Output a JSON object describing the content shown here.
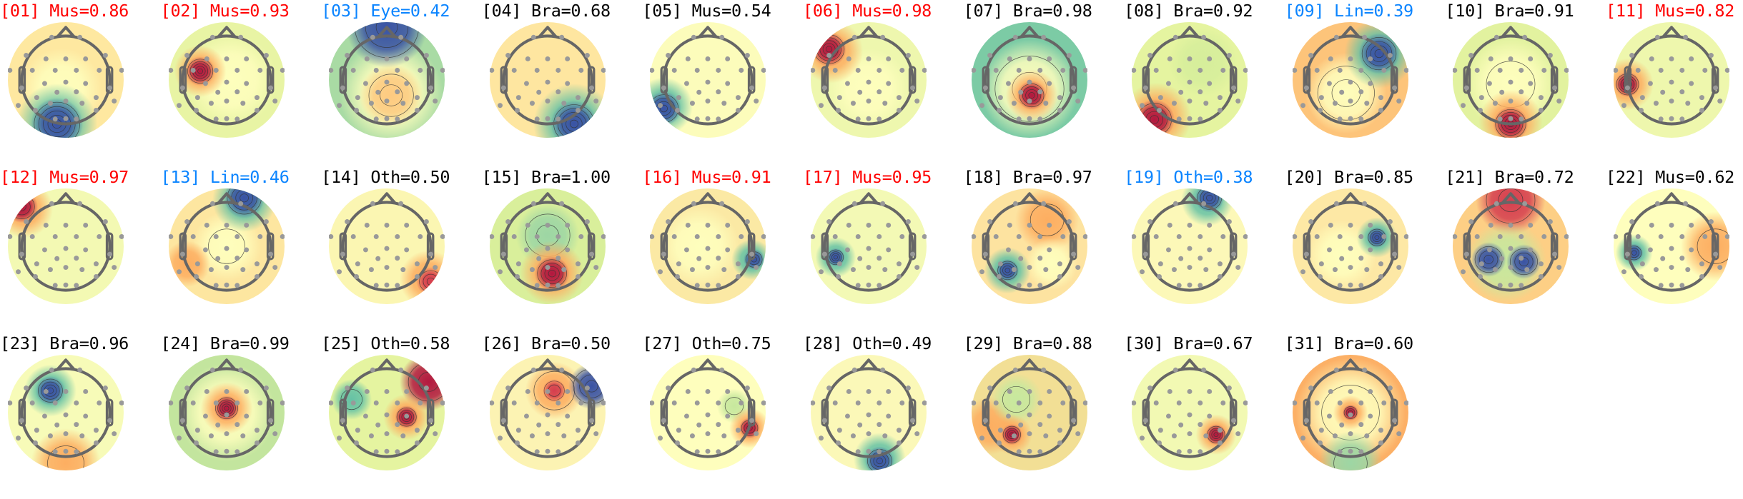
{
  "colormap": {
    "low": "#3a53a4",
    "mid": "#fefebd",
    "high": "#9e0142"
  },
  "class_colors": {
    "red": "#ff0000",
    "blue": "#0a84ff",
    "black": "#000000"
  },
  "components": [
    {
      "title": "[01] Mus=0.86",
      "color": "#ff0000"
    },
    {
      "title": "[02] Mus=0.93",
      "color": "#ff0000"
    },
    {
      "title": "[03] Eye=0.42",
      "color": "#0a84ff"
    },
    {
      "title": "[04] Bra=0.68",
      "color": "#000000"
    },
    {
      "title": "[05] Mus=0.54",
      "color": "#000000"
    },
    {
      "title": "[06] Mus=0.98",
      "color": "#ff0000"
    },
    {
      "title": "[07] Bra=0.98",
      "color": "#000000"
    },
    {
      "title": "[08] Bra=0.92",
      "color": "#000000"
    },
    {
      "title": "[09] Lin=0.39",
      "color": "#0a84ff"
    },
    {
      "title": "[10] Bra=0.91",
      "color": "#000000"
    },
    {
      "title": "[11] Mus=0.82",
      "color": "#ff0000"
    },
    {
      "title": "[12] Mus=0.97",
      "color": "#ff0000"
    },
    {
      "title": "[13] Lin=0.46",
      "color": "#0a84ff"
    },
    {
      "title": "[14] Oth=0.50",
      "color": "#000000"
    },
    {
      "title": "[15] Bra=1.00",
      "color": "#000000"
    },
    {
      "title": "[16] Mus=0.91",
      "color": "#ff0000"
    },
    {
      "title": "[17] Mus=0.95",
      "color": "#ff0000"
    },
    {
      "title": "[18] Bra=0.97",
      "color": "#000000"
    },
    {
      "title": "[19] Oth=0.38",
      "color": "#0a84ff"
    },
    {
      "title": "[20] Bra=0.85",
      "color": "#000000"
    },
    {
      "title": "[21] Bra=0.72",
      "color": "#000000"
    },
    {
      "title": "[22] Mus=0.62",
      "color": "#000000"
    },
    {
      "title": "[23] Bra=0.96",
      "color": "#000000"
    },
    {
      "title": "[24] Bra=0.99",
      "color": "#000000"
    },
    {
      "title": "[25] Oth=0.58",
      "color": "#000000"
    },
    {
      "title": "[26] Bra=0.50",
      "color": "#000000"
    },
    {
      "title": "[27] Oth=0.75",
      "color": "#000000"
    },
    {
      "title": "[28] Oth=0.49",
      "color": "#000000"
    },
    {
      "title": "[29] Bra=0.88",
      "color": "#000000"
    },
    {
      "title": "[30] Bra=0.67",
      "color": "#000000"
    },
    {
      "title": "[31] Bra=0.60",
      "color": "#000000"
    }
  ]
}
